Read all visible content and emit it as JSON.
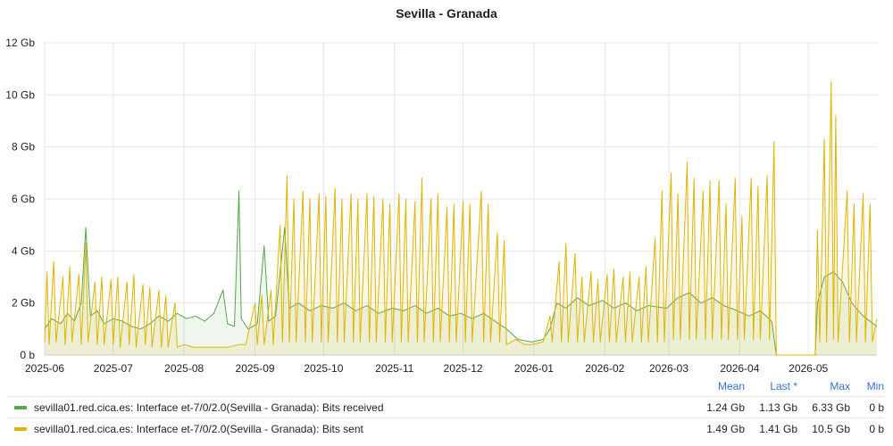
{
  "panel": {
    "title": "Sevilla - Granada"
  },
  "legend": {
    "headers": {
      "mean": "Mean",
      "last": "Last *",
      "max": "Max",
      "min": "Min"
    },
    "rows": [
      {
        "label": "sevilla01.red.cica.es: Interface et-7/0/2.0(Sevilla - Granada): Bits received",
        "mean": "1.24 Gb",
        "last": "1.13 Gb",
        "max": "6.33 Gb",
        "min": "0 b"
      },
      {
        "label": "sevilla01.red.cica.es: Interface et-7/0/2.0(Sevilla - Granada): Bits sent",
        "mean": "1.49 Gb",
        "last": "1.41 Gb",
        "max": "10.5 Gb",
        "min": "0 b"
      }
    ]
  },
  "chart_data": {
    "type": "area",
    "title": "Sevilla - Granada",
    "xlabel": "",
    "ylabel": "",
    "ylim": [
      0,
      12
    ],
    "y_unit": "Gb",
    "y_ticks": [
      "0 b",
      "2 Gb",
      "4 Gb",
      "6 Gb",
      "8 Gb",
      "10 Gb",
      "12 Gb"
    ],
    "x_ticks": [
      "2025-06",
      "2025-07",
      "2025-08",
      "2025-09",
      "2025-10",
      "2025-11",
      "2025-12",
      "2026-01",
      "2026-02",
      "2026-03",
      "2026-04",
      "2026-05"
    ],
    "x_range": [
      "2025-06-01",
      "2026-05-31"
    ],
    "grid": true,
    "legend_position": "bottom",
    "series": [
      {
        "name": "sevilla01.red.cica.es: Interface et-7/0/2.0(Sevilla - Granada): Bits received",
        "color": "#56a64b",
        "points": [
          [
            "2025-06-01",
            1.0
          ],
          [
            "2025-06-04",
            1.4
          ],
          [
            "2025-06-08",
            1.2
          ],
          [
            "2025-06-11",
            1.6
          ],
          [
            "2025-06-14",
            1.3
          ],
          [
            "2025-06-17",
            2.0
          ],
          [
            "2025-06-19",
            4.9
          ],
          [
            "2025-06-21",
            1.5
          ],
          [
            "2025-06-24",
            1.7
          ],
          [
            "2025-06-27",
            1.2
          ],
          [
            "2025-07-01",
            1.4
          ],
          [
            "2025-07-05",
            1.3
          ],
          [
            "2025-07-09",
            1.1
          ],
          [
            "2025-07-13",
            1.0
          ],
          [
            "2025-07-17",
            1.2
          ],
          [
            "2025-07-21",
            1.5
          ],
          [
            "2025-07-25",
            1.3
          ],
          [
            "2025-07-29",
            1.6
          ],
          [
            "2025-08-02",
            1.4
          ],
          [
            "2025-08-06",
            1.5
          ],
          [
            "2025-08-10",
            1.3
          ],
          [
            "2025-08-14",
            1.6
          ],
          [
            "2025-08-18",
            2.5
          ],
          [
            "2025-08-20",
            1.2
          ],
          [
            "2025-08-23",
            1.1
          ],
          [
            "2025-08-25",
            6.3
          ],
          [
            "2025-08-26",
            1.4
          ],
          [
            "2025-08-29",
            1.0
          ],
          [
            "2025-09-02",
            1.2
          ],
          [
            "2025-09-05",
            4.2
          ],
          [
            "2025-09-07",
            1.3
          ],
          [
            "2025-09-10",
            1.5
          ],
          [
            "2025-09-14",
            4.9
          ],
          [
            "2025-09-16",
            1.8
          ],
          [
            "2025-09-20",
            2.0
          ],
          [
            "2025-09-25",
            1.7
          ],
          [
            "2025-09-30",
            1.9
          ],
          [
            "2025-10-05",
            1.8
          ],
          [
            "2025-10-10",
            2.0
          ],
          [
            "2025-10-15",
            1.7
          ],
          [
            "2025-10-20",
            1.9
          ],
          [
            "2025-10-25",
            1.6
          ],
          [
            "2025-10-31",
            1.8
          ],
          [
            "2025-11-05",
            1.7
          ],
          [
            "2025-11-10",
            1.9
          ],
          [
            "2025-11-15",
            1.6
          ],
          [
            "2025-11-20",
            1.8
          ],
          [
            "2025-11-25",
            1.5
          ],
          [
            "2025-11-30",
            1.6
          ],
          [
            "2025-12-05",
            1.4
          ],
          [
            "2025-12-10",
            1.6
          ],
          [
            "2025-12-15",
            1.3
          ],
          [
            "2025-12-20",
            1.0
          ],
          [
            "2025-12-25",
            0.6
          ],
          [
            "2025-12-31",
            0.5
          ],
          [
            "2026-01-05",
            0.6
          ],
          [
            "2026-01-08",
            1.0
          ],
          [
            "2026-01-11",
            2.0
          ],
          [
            "2026-01-15",
            1.8
          ],
          [
            "2026-01-20",
            2.2
          ],
          [
            "2026-01-25",
            1.9
          ],
          [
            "2026-01-31",
            2.1
          ],
          [
            "2026-02-05",
            1.8
          ],
          [
            "2026-02-10",
            2.0
          ],
          [
            "2026-02-15",
            1.7
          ],
          [
            "2026-02-20",
            1.9
          ],
          [
            "2026-02-28",
            1.8
          ],
          [
            "2026-03-05",
            2.2
          ],
          [
            "2026-03-10",
            2.4
          ],
          [
            "2026-03-15",
            2.0
          ],
          [
            "2026-03-20",
            2.2
          ],
          [
            "2026-03-25",
            1.9
          ],
          [
            "2026-03-31",
            1.7
          ],
          [
            "2026-04-05",
            1.5
          ],
          [
            "2026-04-10",
            1.7
          ],
          [
            "2026-04-15",
            1.3
          ],
          [
            "2026-04-17",
            0.0
          ],
          [
            "2026-04-30",
            0.0
          ],
          [
            "2026-05-04",
            0.0
          ],
          [
            "2026-05-05",
            2.0
          ],
          [
            "2026-05-08",
            3.0
          ],
          [
            "2026-05-12",
            3.2
          ],
          [
            "2026-05-16",
            2.8
          ],
          [
            "2026-05-20",
            2.0
          ],
          [
            "2026-05-25",
            1.5
          ],
          [
            "2026-05-31",
            1.1
          ]
        ]
      },
      {
        "name": "sevilla01.red.cica.es: Interface et-7/0/2.0(Sevilla - Granada): Bits sent",
        "color": "#e0b400",
        "points": [
          [
            "2025-06-01",
            0.5
          ],
          [
            "2025-06-02",
            3.2
          ],
          [
            "2025-06-03",
            0.4
          ],
          [
            "2025-06-05",
            3.6
          ],
          [
            "2025-06-06",
            0.5
          ],
          [
            "2025-06-09",
            3.0
          ],
          [
            "2025-06-10",
            0.4
          ],
          [
            "2025-06-12",
            3.4
          ],
          [
            "2025-06-13",
            0.5
          ],
          [
            "2025-06-16",
            3.1
          ],
          [
            "2025-06-17",
            0.4
          ],
          [
            "2025-06-19",
            4.3
          ],
          [
            "2025-06-20",
            0.5
          ],
          [
            "2025-06-23",
            2.8
          ],
          [
            "2025-06-24",
            0.4
          ],
          [
            "2025-06-26",
            3.0
          ],
          [
            "2025-06-27",
            0.4
          ],
          [
            "2025-06-30",
            2.9
          ],
          [
            "2025-07-01",
            0.4
          ],
          [
            "2025-07-03",
            3.0
          ],
          [
            "2025-07-04",
            0.3
          ],
          [
            "2025-07-07",
            2.8
          ],
          [
            "2025-07-08",
            0.4
          ],
          [
            "2025-07-10",
            3.1
          ],
          [
            "2025-07-11",
            0.3
          ],
          [
            "2025-07-14",
            2.7
          ],
          [
            "2025-07-15",
            0.4
          ],
          [
            "2025-07-17",
            2.6
          ],
          [
            "2025-07-18",
            0.3
          ],
          [
            "2025-07-21",
            2.5
          ],
          [
            "2025-07-22",
            0.3
          ],
          [
            "2025-07-24",
            2.3
          ],
          [
            "2025-07-25",
            0.3
          ],
          [
            "2025-07-28",
            2.0
          ],
          [
            "2025-07-29",
            0.3
          ],
          [
            "2025-08-01",
            0.4
          ],
          [
            "2025-08-05",
            0.3
          ],
          [
            "2025-08-10",
            0.3
          ],
          [
            "2025-08-15",
            0.3
          ],
          [
            "2025-08-20",
            0.3
          ],
          [
            "2025-08-25",
            0.4
          ],
          [
            "2025-08-28",
            0.4
          ],
          [
            "2025-09-01",
            2.0
          ],
          [
            "2025-09-02",
            0.4
          ],
          [
            "2025-09-04",
            2.3
          ],
          [
            "2025-09-05",
            0.4
          ],
          [
            "2025-09-08",
            2.5
          ],
          [
            "2025-09-09",
            0.4
          ],
          [
            "2025-09-12",
            5.0
          ],
          [
            "2025-09-13",
            0.5
          ],
          [
            "2025-09-15",
            6.9
          ],
          [
            "2025-09-16",
            0.5
          ],
          [
            "2025-09-18",
            6.0
          ],
          [
            "2025-09-19",
            0.5
          ],
          [
            "2025-09-22",
            6.3
          ],
          [
            "2025-09-23",
            0.5
          ],
          [
            "2025-09-25",
            6.0
          ],
          [
            "2025-09-26",
            0.5
          ],
          [
            "2025-09-29",
            6.2
          ],
          [
            "2025-09-30",
            0.5
          ],
          [
            "2025-10-02",
            6.1
          ],
          [
            "2025-10-03",
            0.5
          ],
          [
            "2025-10-06",
            6.4
          ],
          [
            "2025-10-07",
            0.5
          ],
          [
            "2025-10-09",
            6.0
          ],
          [
            "2025-10-10",
            0.5
          ],
          [
            "2025-10-13",
            6.2
          ],
          [
            "2025-10-14",
            0.5
          ],
          [
            "2025-10-16",
            6.0
          ],
          [
            "2025-10-17",
            0.5
          ],
          [
            "2025-10-20",
            6.2
          ],
          [
            "2025-10-21",
            0.5
          ],
          [
            "2025-10-23",
            6.1
          ],
          [
            "2025-10-24",
            0.5
          ],
          [
            "2025-10-27",
            6.0
          ],
          [
            "2025-10-28",
            0.5
          ],
          [
            "2025-10-30",
            5.8
          ],
          [
            "2025-10-31",
            0.5
          ],
          [
            "2025-11-03",
            6.2
          ],
          [
            "2025-11-04",
            0.5
          ],
          [
            "2025-11-06",
            6.0
          ],
          [
            "2025-11-07",
            0.5
          ],
          [
            "2025-11-10",
            5.9
          ],
          [
            "2025-11-11",
            0.5
          ],
          [
            "2025-11-13",
            6.8
          ],
          [
            "2025-11-14",
            0.5
          ],
          [
            "2025-11-17",
            6.0
          ],
          [
            "2025-11-18",
            0.5
          ],
          [
            "2025-11-20",
            6.2
          ],
          [
            "2025-11-21",
            0.5
          ],
          [
            "2025-11-24",
            5.7
          ],
          [
            "2025-11-25",
            0.5
          ],
          [
            "2025-11-27",
            5.8
          ],
          [
            "2025-11-28",
            0.5
          ],
          [
            "2025-12-01",
            5.9
          ],
          [
            "2025-12-02",
            0.5
          ],
          [
            "2025-12-04",
            5.8
          ],
          [
            "2025-12-05",
            0.5
          ],
          [
            "2025-12-09",
            6.3
          ],
          [
            "2025-12-10",
            0.5
          ],
          [
            "2025-12-12",
            5.8
          ],
          [
            "2025-12-13",
            0.5
          ],
          [
            "2025-12-16",
            4.7
          ],
          [
            "2025-12-17",
            0.5
          ],
          [
            "2025-12-19",
            4.4
          ],
          [
            "2025-12-20",
            0.4
          ],
          [
            "2025-12-24",
            0.6
          ],
          [
            "2025-12-28",
            0.4
          ],
          [
            "2025-12-31",
            0.4
          ],
          [
            "2026-01-05",
            0.5
          ],
          [
            "2026-01-08",
            1.5
          ],
          [
            "2026-01-09",
            0.5
          ],
          [
            "2026-01-12",
            3.6
          ],
          [
            "2026-01-13",
            0.5
          ],
          [
            "2026-01-15",
            4.3
          ],
          [
            "2026-01-16",
            0.5
          ],
          [
            "2026-01-19",
            3.9
          ],
          [
            "2026-01-20",
            0.5
          ],
          [
            "2026-01-22",
            3.0
          ],
          [
            "2026-01-23",
            0.5
          ],
          [
            "2026-01-26",
            3.2
          ],
          [
            "2026-01-27",
            0.5
          ],
          [
            "2026-01-29",
            2.9
          ],
          [
            "2026-01-30",
            0.5
          ],
          [
            "2026-02-02",
            3.1
          ],
          [
            "2026-02-03",
            0.5
          ],
          [
            "2026-02-05",
            3.3
          ],
          [
            "2026-02-06",
            0.5
          ],
          [
            "2026-02-09",
            3.0
          ],
          [
            "2026-02-10",
            0.5
          ],
          [
            "2026-02-12",
            3.2
          ],
          [
            "2026-02-13",
            0.5
          ],
          [
            "2026-02-16",
            3.0
          ],
          [
            "2026-02-17",
            0.5
          ],
          [
            "2026-02-19",
            3.4
          ],
          [
            "2026-02-20",
            0.5
          ],
          [
            "2026-02-23",
            4.5
          ],
          [
            "2026-02-24",
            0.5
          ],
          [
            "2026-02-26",
            6.3
          ],
          [
            "2026-02-27",
            0.5
          ],
          [
            "2026-03-02",
            7.0
          ],
          [
            "2026-03-03",
            0.6
          ],
          [
            "2026-03-05",
            6.2
          ],
          [
            "2026-03-06",
            0.6
          ],
          [
            "2026-03-09",
            7.4
          ],
          [
            "2026-03-10",
            0.6
          ],
          [
            "2026-03-12",
            6.8
          ],
          [
            "2026-03-13",
            0.6
          ],
          [
            "2026-03-16",
            6.3
          ],
          [
            "2026-03-17",
            0.6
          ],
          [
            "2026-03-19",
            6.7
          ],
          [
            "2026-03-20",
            0.6
          ],
          [
            "2026-03-23",
            6.7
          ],
          [
            "2026-03-24",
            0.6
          ],
          [
            "2026-03-26",
            5.8
          ],
          [
            "2026-03-27",
            0.6
          ],
          [
            "2026-03-30",
            6.8
          ],
          [
            "2026-03-31",
            0.6
          ],
          [
            "2026-04-02",
            5.3
          ],
          [
            "2026-04-03",
            0.6
          ],
          [
            "2026-04-06",
            6.8
          ],
          [
            "2026-04-07",
            0.6
          ],
          [
            "2026-04-09",
            6.5
          ],
          [
            "2026-04-10",
            0.6
          ],
          [
            "2026-04-13",
            6.9
          ],
          [
            "2026-04-14",
            0.6
          ],
          [
            "2026-04-16",
            8.2
          ],
          [
            "2026-04-17",
            0.0
          ],
          [
            "2026-04-30",
            0.0
          ],
          [
            "2026-05-04",
            0.0
          ],
          [
            "2026-05-05",
            4.8
          ],
          [
            "2026-05-06",
            0.5
          ],
          [
            "2026-05-08",
            8.3
          ],
          [
            "2026-05-09",
            0.5
          ],
          [
            "2026-05-11",
            10.5
          ],
          [
            "2026-05-12",
            0.6
          ],
          [
            "2026-05-13",
            9.2
          ],
          [
            "2026-05-14",
            0.5
          ],
          [
            "2026-05-18",
            6.3
          ],
          [
            "2026-05-19",
            0.5
          ],
          [
            "2026-05-21",
            5.8
          ],
          [
            "2026-05-22",
            0.5
          ],
          [
            "2026-05-25",
            6.2
          ],
          [
            "2026-05-26",
            0.5
          ],
          [
            "2026-05-28",
            5.8
          ],
          [
            "2026-05-29",
            0.5
          ],
          [
            "2026-05-31",
            1.4
          ]
        ]
      }
    ]
  }
}
